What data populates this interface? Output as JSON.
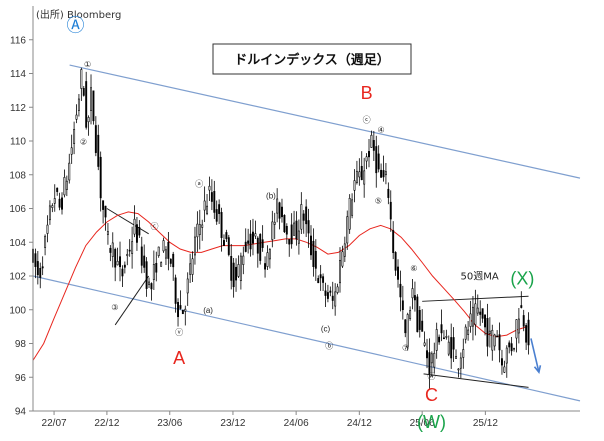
{
  "chart_data": {
    "type": "candlestick",
    "title": "ドルインデックス（週足）",
    "source": "(出所) Bloomberg",
    "xlabel": "",
    "ylabel": "",
    "ylim": [
      94,
      118
    ],
    "grid": false,
    "x_ticks": [
      "22/07",
      "22/12",
      "23/06",
      "23/12",
      "24/06",
      "24/12",
      "25/06",
      "25/12"
    ],
    "y_ticks": [
      94,
      96,
      98,
      100,
      102,
      104,
      106,
      108,
      110,
      112,
      114,
      116
    ],
    "series": [
      {
        "name": "50週MA",
        "color": "#e8261e",
        "points": [
          [
            "2022-05-01",
            97.0
          ],
          [
            "2022-06-01",
            98.0
          ],
          [
            "2022-07-01",
            99.5
          ],
          [
            "2022-08-01",
            101.0
          ],
          [
            "2022-09-01",
            102.5
          ],
          [
            "2022-10-01",
            103.8
          ],
          [
            "2022-11-01",
            104.6
          ],
          [
            "2022-12-01",
            105.2
          ],
          [
            "2023-01-01",
            105.6
          ],
          [
            "2023-02-01",
            105.8
          ],
          [
            "2023-03-01",
            105.7
          ],
          [
            "2023-04-01",
            105.2
          ],
          [
            "2023-05-01",
            104.6
          ],
          [
            "2023-06-01",
            104.0
          ],
          [
            "2023-07-01",
            103.6
          ],
          [
            "2023-08-01",
            103.4
          ],
          [
            "2023-09-01",
            103.4
          ],
          [
            "2023-10-01",
            103.6
          ],
          [
            "2023-11-01",
            103.8
          ],
          [
            "2023-12-01",
            103.8
          ],
          [
            "2024-01-01",
            103.8
          ],
          [
            "2024-02-01",
            103.9
          ],
          [
            "2024-03-01",
            104.0
          ],
          [
            "2024-04-01",
            104.1
          ],
          [
            "2024-05-01",
            104.2
          ],
          [
            "2024-06-01",
            104.2
          ],
          [
            "2024-07-01",
            104.0
          ],
          [
            "2024-08-01",
            103.7
          ],
          [
            "2024-09-01",
            103.3
          ],
          [
            "2024-10-01",
            103.4
          ],
          [
            "2024-11-01",
            103.8
          ],
          [
            "2024-12-01",
            104.4
          ],
          [
            "2025-01-01",
            104.8
          ],
          [
            "2025-02-01",
            105.0
          ],
          [
            "2025-03-01",
            104.8
          ],
          [
            "2025-04-01",
            104.3
          ],
          [
            "2025-05-01",
            103.6
          ],
          [
            "2025-06-01",
            102.8
          ],
          [
            "2025-07-01",
            102.0
          ],
          [
            "2025-08-01",
            101.3
          ],
          [
            "2025-09-01",
            100.6
          ],
          [
            "2025-10-01",
            99.9
          ],
          [
            "2025-11-01",
            99.1
          ],
          [
            "2025-12-01",
            98.6
          ],
          [
            "2026-01-01",
            98.4
          ],
          [
            "2026-02-01",
            98.5
          ],
          [
            "2026-03-01",
            98.8
          ],
          [
            "2026-04-01",
            99.0
          ]
        ]
      },
      {
        "name": "",
        "type": "candlestick",
        "color": "#000000",
        "anchors": [
          [
            "2022-05-01",
            103.5
          ],
          [
            "2022-05-25",
            101.8
          ],
          [
            "2022-07-08",
            107.0
          ],
          [
            "2022-07-25",
            106.0
          ],
          [
            "2022-08-20",
            108.5
          ],
          [
            "2022-09-27",
            114.0
          ],
          [
            "2022-10-12",
            110.5
          ],
          [
            "2022-10-24",
            112.8
          ],
          [
            "2022-11-20",
            107.0
          ],
          [
            "2022-12-10",
            104.0
          ],
          [
            "2022-12-28",
            103.5
          ],
          [
            "2023-01-18",
            101.8
          ],
          [
            "2023-02-28",
            105.0
          ],
          [
            "2023-03-20",
            103.0
          ],
          [
            "2023-04-13",
            101.0
          ],
          [
            "2023-05-01",
            103.0
          ],
          [
            "2023-05-20",
            103.5
          ],
          [
            "2023-06-10",
            103.0
          ],
          [
            "2023-06-30",
            100.2
          ],
          [
            "2023-07-18",
            100.0
          ],
          [
            "2023-08-20",
            104.0
          ],
          [
            "2023-09-15",
            106.0
          ],
          [
            "2023-10-01",
            106.9
          ],
          [
            "2023-10-20",
            105.8
          ],
          [
            "2023-11-10",
            104.5
          ],
          [
            "2023-11-28",
            102.8
          ],
          [
            "2023-12-15",
            101.5
          ],
          [
            "2024-01-05",
            103.5
          ],
          [
            "2024-01-25",
            104.2
          ],
          [
            "2024-02-20",
            103.8
          ],
          [
            "2024-03-08",
            102.9
          ],
          [
            "2024-04-15",
            106.0
          ],
          [
            "2024-04-25",
            105.8
          ],
          [
            "2024-05-15",
            104.5
          ],
          [
            "2024-06-10",
            104.6
          ],
          [
            "2024-06-26",
            106.0
          ],
          [
            "2024-07-15",
            104.0
          ],
          [
            "2024-08-20",
            101.3
          ],
          [
            "2024-09-25",
            100.4
          ],
          [
            "2024-10-25",
            104.3
          ],
          [
            "2024-11-22",
            107.5
          ],
          [
            "2024-12-15",
            108.0
          ],
          [
            "2025-01-05",
            109.5
          ],
          [
            "2025-01-15",
            109.8
          ],
          [
            "2025-02-05",
            107.8
          ],
          [
            "2025-02-28",
            107.5
          ],
          [
            "2025-03-15",
            103.8
          ],
          [
            "2025-04-10",
            100.0
          ],
          [
            "2025-04-21",
            98.3
          ],
          [
            "2025-05-05",
            100.5
          ],
          [
            "2025-05-12",
            101.7
          ],
          [
            "2025-05-20",
            99.6
          ],
          [
            "2025-06-10",
            98.3
          ],
          [
            "2025-06-30",
            96.6
          ],
          [
            "2025-07-15",
            97.8
          ],
          [
            "2025-08-01",
            99.0
          ],
          [
            "2025-08-15",
            98.0
          ],
          [
            "2025-09-01",
            97.8
          ],
          [
            "2025-09-17",
            96.8
          ],
          [
            "2025-10-05",
            98.0
          ],
          [
            "2025-10-20",
            99.0
          ],
          [
            "2025-11-05",
            99.6
          ],
          [
            "2025-11-20",
            100.0
          ],
          [
            "2025-12-05",
            99.0
          ],
          [
            "2025-12-20",
            98.2
          ],
          [
            "2026-01-10",
            98.8
          ],
          [
            "2026-01-25",
            96.8
          ],
          [
            "2026-02-10",
            97.6
          ],
          [
            "2026-02-28",
            98.0
          ],
          [
            "2026-03-10",
            99.5
          ],
          [
            "2026-03-18",
            100.3
          ],
          [
            "2026-03-28",
            99.6
          ],
          [
            "2026-04-08",
            98.4
          ]
        ]
      }
    ],
    "channel_lines": [
      {
        "color": "#7f9fcf",
        "points": [
          [
            "2022-08-15",
            114.5
          ],
          [
            "2026-09-01",
            107.8
          ]
        ]
      },
      {
        "color": "#7f9fcf",
        "points": [
          [
            "2022-05-01",
            102.0
          ],
          [
            "2026-09-01",
            94.6
          ]
        ]
      }
    ],
    "trend_lines": [
      {
        "points": [
          [
            "2022-12-01",
            106.0
          ],
          [
            "2023-04-01",
            104.5
          ]
        ]
      },
      {
        "points": [
          [
            "2022-12-25",
            99.1
          ],
          [
            "2023-04-01",
            102.0
          ]
        ]
      },
      {
        "points": [
          [
            "2025-06-01",
            100.5
          ],
          [
            "2026-04-05",
            100.8
          ]
        ]
      },
      {
        "points": [
          [
            "2025-06-05",
            96.2
          ],
          [
            "2026-04-05",
            95.4
          ]
        ]
      }
    ],
    "forecast_arrow": {
      "color": "#4a7fd0",
      "from": [
        "2026-04-12",
        98.3
      ],
      "to": [
        "2026-05-05",
        96.3
      ]
    },
    "wave_labels": [
      {
        "text": "①",
        "pos": [
          "2022-10-06",
          114.4
        ]
      },
      {
        "text": "Ⓐ",
        "pos": [
          "2022-09-01",
          116.5
        ],
        "emphasis": true,
        "color": "#1f7fd6"
      },
      {
        "text": "②",
        "pos": [
          "2022-09-24",
          109.8
        ]
      },
      {
        "text": "③",
        "pos": [
          "2022-12-24",
          100.0
        ]
      },
      {
        "text": "ⓒ",
        "pos": [
          "2023-04-18",
          104.8
        ]
      },
      {
        "text": "ⓥ",
        "pos": [
          "2023-06-28",
          98.5
        ]
      },
      {
        "text": "A",
        "pos": [
          "2023-06-28",
          96.8
        ],
        "emphasis": true,
        "color": "#e8261e"
      },
      {
        "text": "ⓐ",
        "pos": [
          "2023-08-25",
          107.3
        ]
      },
      {
        "text": "(a)",
        "pos": [
          "2023-09-20",
          99.8
        ]
      },
      {
        "text": "(b)",
        "pos": [
          "2024-03-20",
          106.6
        ]
      },
      {
        "text": "(c)",
        "pos": [
          "2024-08-25",
          98.7
        ]
      },
      {
        "text": "ⓑ",
        "pos": [
          "2024-09-05",
          97.7
        ]
      },
      {
        "text": "ⓒ",
        "pos": [
          "2024-12-22",
          111.1
        ]
      },
      {
        "text": "B",
        "pos": [
          "2024-12-22",
          112.5
        ],
        "emphasis": true,
        "color": "#e8261e"
      },
      {
        "text": "④",
        "pos": [
          "2025-02-02",
          110.5
        ]
      },
      {
        "text": "⑤",
        "pos": [
          "2025-01-25",
          106.3
        ]
      },
      {
        "text": "⑥",
        "pos": [
          "2025-05-08",
          102.3
        ]
      },
      {
        "text": "⑦",
        "pos": [
          "2025-04-14",
          97.6
        ]
      },
      {
        "text": "ⓦ",
        "pos": [
          "2025-06-28",
          95.9
        ]
      },
      {
        "text": "C",
        "pos": [
          "2025-06-28",
          94.6
        ],
        "emphasis": true,
        "color": "#e8261e"
      },
      {
        "text": "(W)",
        "pos": [
          "2025-06-28",
          93.0
        ],
        "emphasis": true,
        "color": "#19a34a"
      },
      {
        "text": "(X)",
        "pos": [
          "2026-03-18",
          101.5
        ],
        "emphasis": true,
        "color": "#19a34a"
      },
      {
        "text": "50週MA",
        "pos": [
          "2025-09-20",
          101.8
        ],
        "color": "#e8261e",
        "is_legend": true
      }
    ]
  }
}
